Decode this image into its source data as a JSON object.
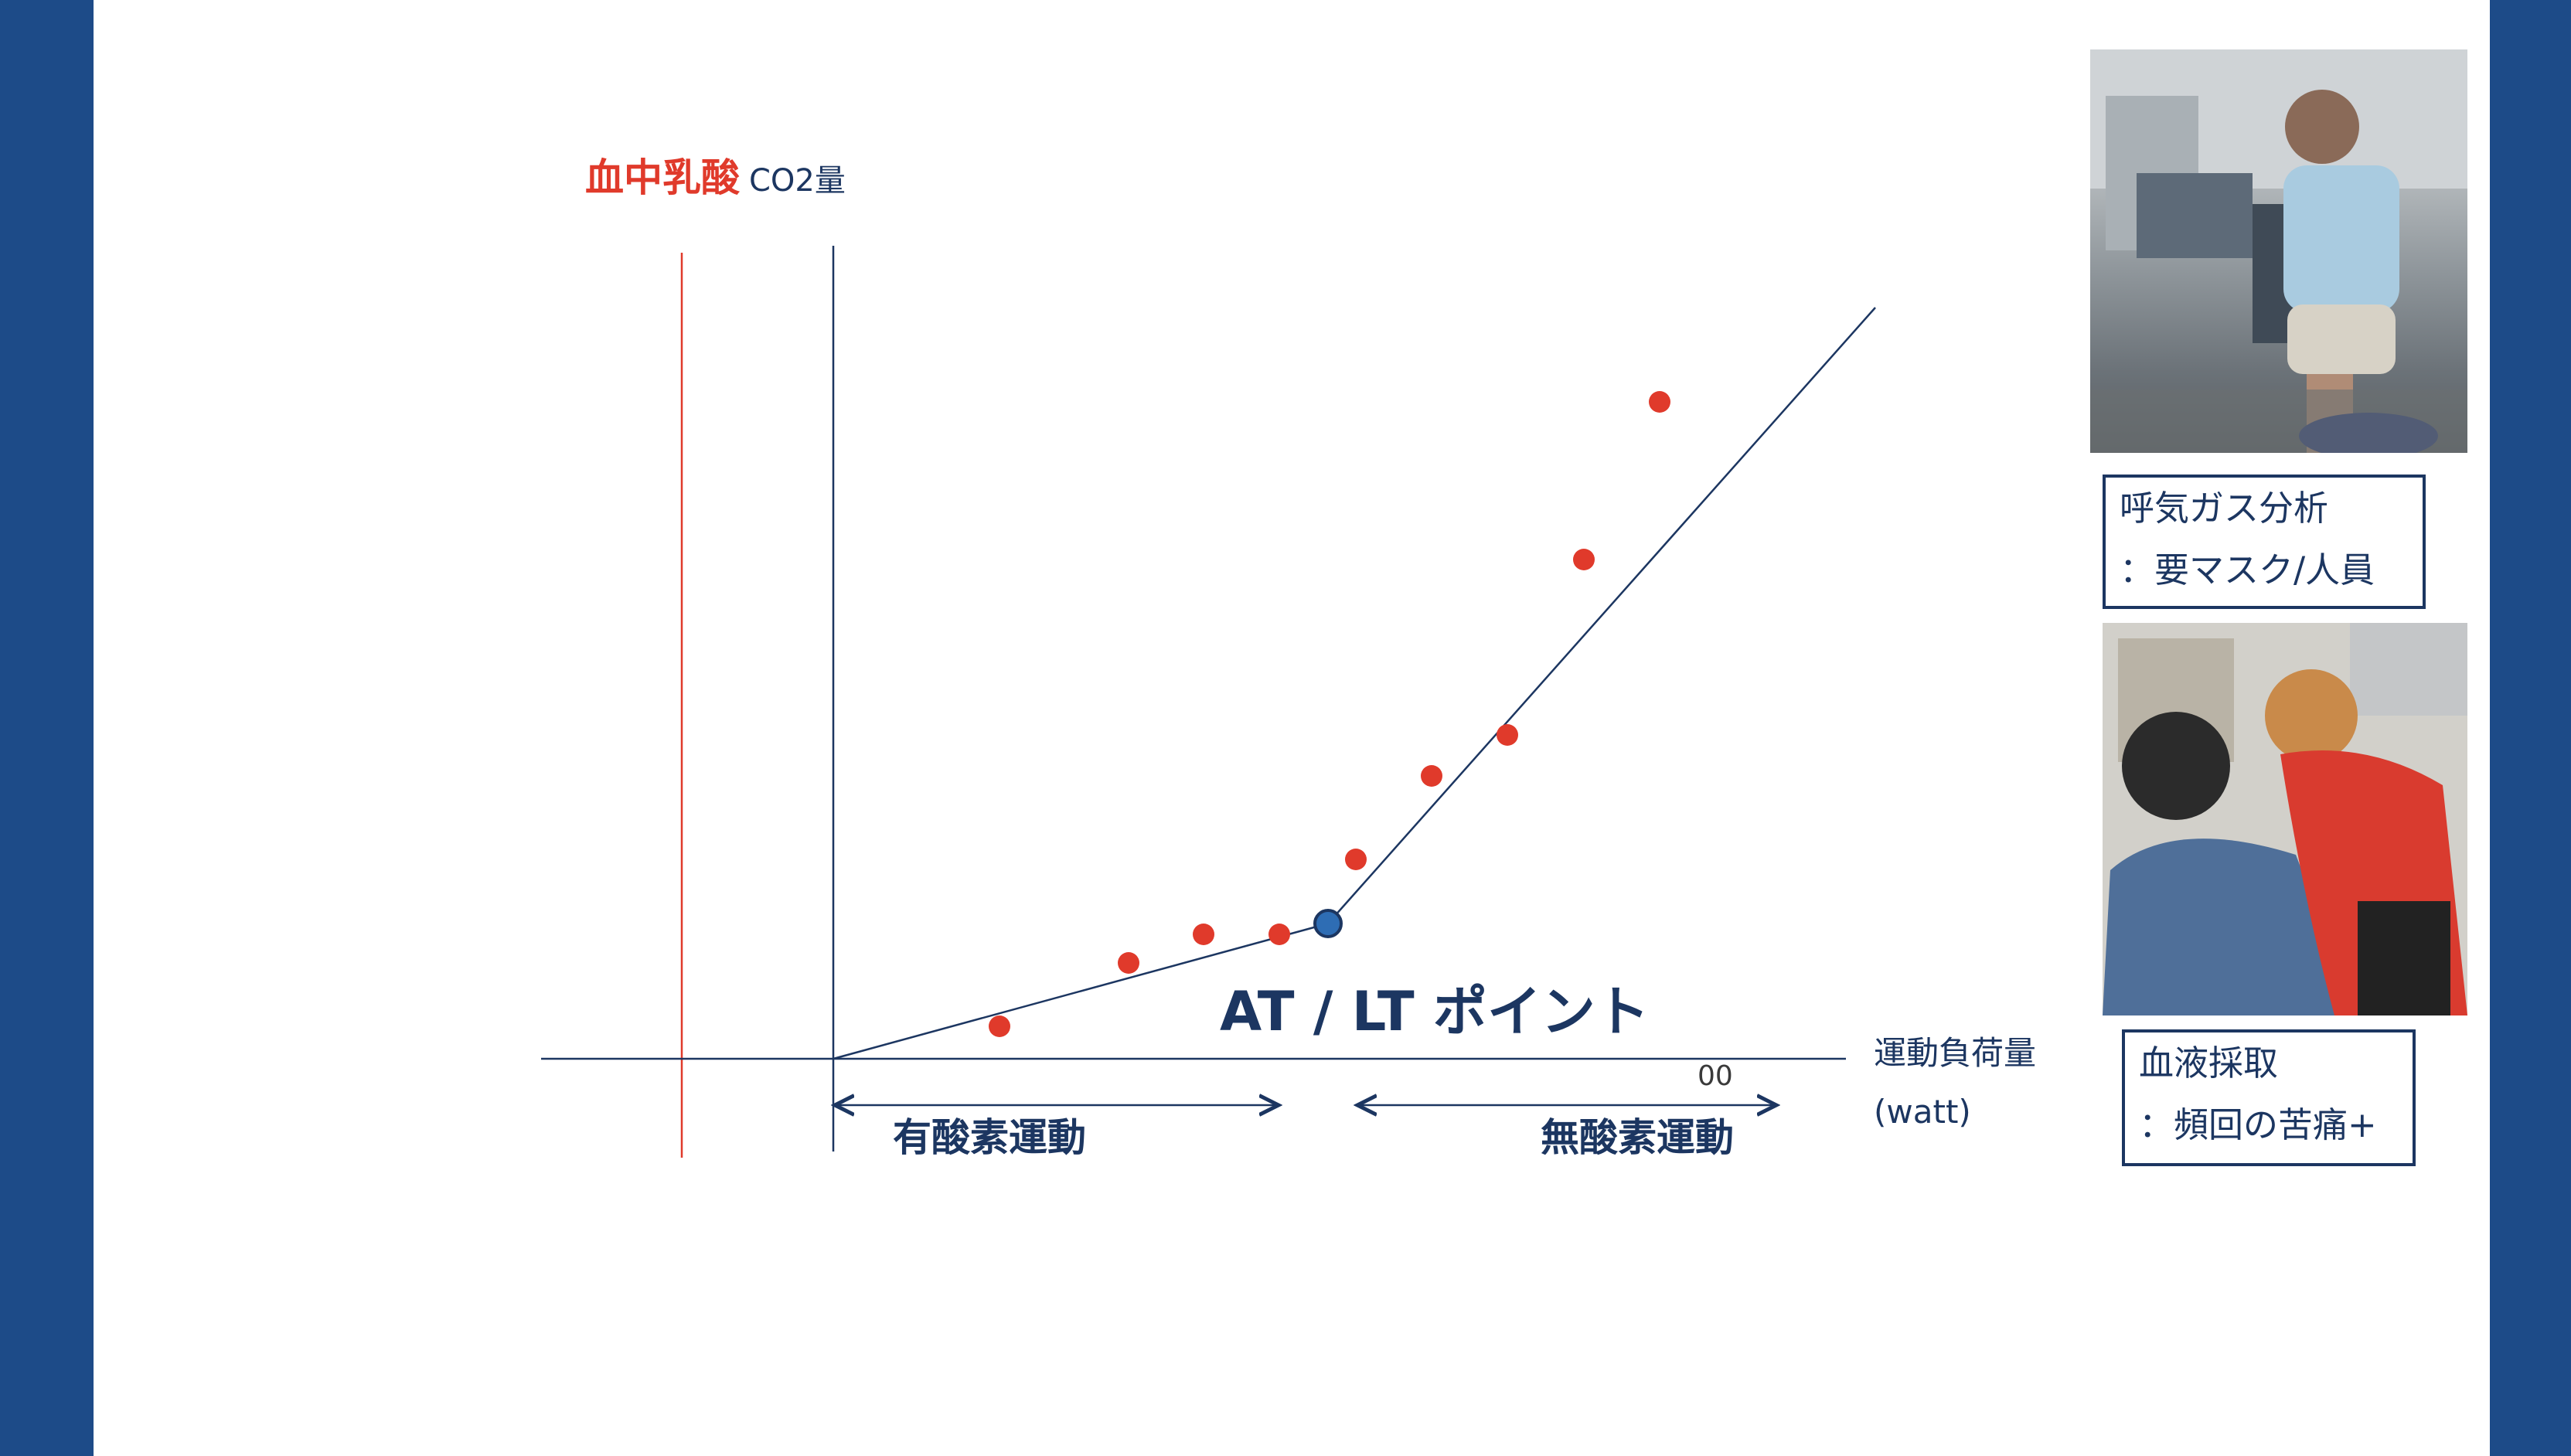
{
  "diagram": {
    "y_axis_label_main": "血中乳酸",
    "y_axis_label_sub": "CO2量",
    "x_axis_label_line1": "運動負荷量",
    "x_axis_label_line2": "(watt)",
    "x_tick": "00",
    "threshold_label": "AT / LT ポイント",
    "aerobic_zone_label": "有酸素運動",
    "anaerobic_zone_label": "無酸素運動",
    "colors": {
      "axis": "#1c3661",
      "data_points": "#e03a2b",
      "threshold_point": "#2e6db4",
      "lactate_label": "#e03a2b",
      "slide_border": "#1d4b88"
    }
  },
  "side_panel": {
    "top_caption_line1": "呼気ガス分析",
    "top_caption_line2": "：要マスク/人員",
    "bottom_caption_line1": "血液採取",
    "bottom_caption_line2": "：頻回の苦痛+"
  }
}
